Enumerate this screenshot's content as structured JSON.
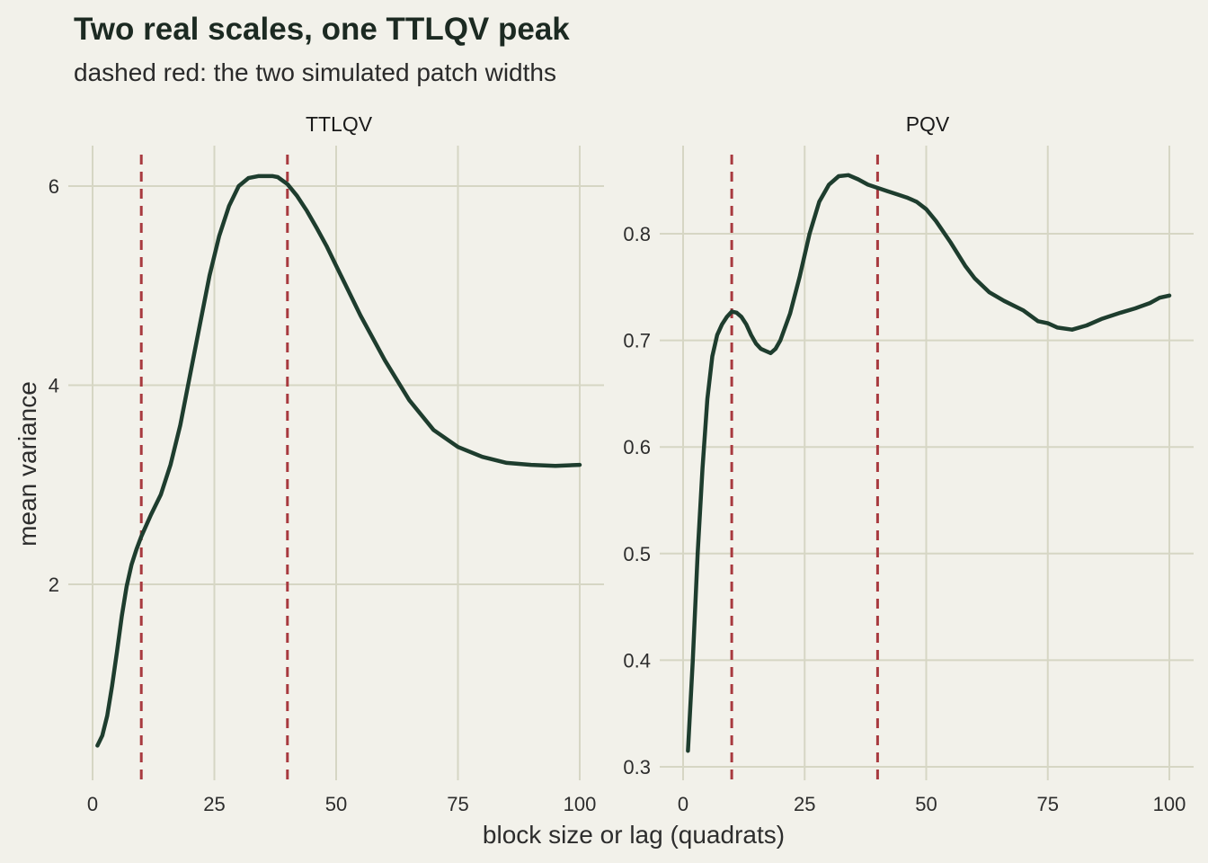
{
  "header": {
    "title": "Two real scales, one TTLQV peak",
    "subtitle": "dashed red: the two simulated patch widths"
  },
  "axes": {
    "xlabel": "block size or lag (quadrats)",
    "ylabel": "mean variance"
  },
  "colors": {
    "background": "#f2f1ea",
    "series": "#1e3d2e",
    "reference": "#a83a3f",
    "grid": "#d6d6c4"
  },
  "chart_data": [
    {
      "type": "line",
      "panel": "TTLQV",
      "xlim": [
        0,
        100
      ],
      "ylim": [
        0.2,
        6.4
      ],
      "x_ticks": [
        0,
        25,
        50,
        75,
        100
      ],
      "y_ticks": [
        2,
        4,
        6
      ],
      "reference_lines_x": [
        10,
        40
      ],
      "grid": true,
      "x": [
        1,
        2,
        3,
        4,
        5,
        6,
        7,
        8,
        9,
        10,
        12,
        14,
        16,
        18,
        20,
        22,
        24,
        26,
        28,
        30,
        32,
        34,
        36,
        37,
        38,
        40,
        42,
        44,
        46,
        48,
        50,
        55,
        60,
        65,
        70,
        75,
        80,
        85,
        90,
        95,
        100
      ],
      "y": [
        0.38,
        0.48,
        0.68,
        0.98,
        1.32,
        1.68,
        1.98,
        2.2,
        2.35,
        2.48,
        2.7,
        2.9,
        3.2,
        3.6,
        4.1,
        4.6,
        5.1,
        5.5,
        5.8,
        6.0,
        6.08,
        6.1,
        6.1,
        6.1,
        6.09,
        6.02,
        5.9,
        5.75,
        5.58,
        5.4,
        5.2,
        4.7,
        4.25,
        3.85,
        3.55,
        3.38,
        3.28,
        3.22,
        3.2,
        3.19,
        3.2
      ]
    },
    {
      "type": "line",
      "panel": "PQV",
      "xlim": [
        0,
        100
      ],
      "ylim": [
        0.29,
        0.87
      ],
      "x_ticks": [
        0,
        25,
        50,
        75,
        100
      ],
      "y_ticks": [
        0.3,
        0.4,
        0.5,
        0.6,
        0.7,
        0.8
      ],
      "reference_lines_x": [
        10,
        40
      ],
      "grid": true,
      "x": [
        1,
        2,
        3,
        4,
        5,
        6,
        7,
        8,
        9,
        10,
        11,
        12,
        13,
        14,
        15,
        16,
        17,
        18,
        19,
        20,
        22,
        24,
        26,
        28,
        30,
        32,
        34,
        36,
        38,
        40,
        42,
        44,
        46,
        48,
        50,
        52,
        55,
        58,
        60,
        63,
        66,
        70,
        73,
        75,
        77,
        80,
        83,
        86,
        90,
        93,
        96,
        98,
        100
      ],
      "y": [
        0.315,
        0.4,
        0.5,
        0.58,
        0.645,
        0.685,
        0.705,
        0.715,
        0.722,
        0.727,
        0.726,
        0.722,
        0.715,
        0.705,
        0.697,
        0.692,
        0.69,
        0.688,
        0.692,
        0.7,
        0.725,
        0.76,
        0.8,
        0.83,
        0.846,
        0.854,
        0.855,
        0.851,
        0.846,
        0.843,
        0.84,
        0.837,
        0.834,
        0.83,
        0.823,
        0.812,
        0.792,
        0.77,
        0.758,
        0.745,
        0.737,
        0.728,
        0.718,
        0.716,
        0.712,
        0.71,
        0.714,
        0.72,
        0.726,
        0.73,
        0.735,
        0.74,
        0.742
      ]
    }
  ]
}
